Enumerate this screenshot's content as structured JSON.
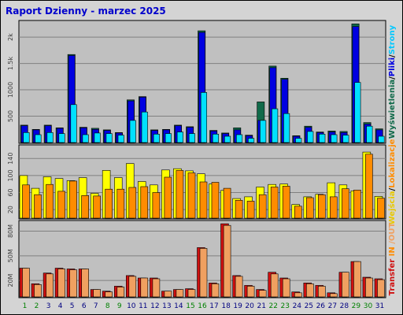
{
  "title": "Raport Dzienny -  marzec 2025",
  "colors": {
    "background": "#ffffff",
    "frame_bg": "#d4d4d4",
    "plot_bg": "#c0c0c0",
    "title": "#0000cc",
    "wyswietlenia": "#106a4a",
    "pliki": "#0000e0",
    "strony": "#00e0ff",
    "wejscia": "#ffff00",
    "lokalizacje": "#ff8c00",
    "in": "#ff8c00",
    "out": "#f0a060",
    "transfer": "#d01010",
    "day_weekday": "#000080",
    "day_weekend": "#008000"
  },
  "legend": {
    "top": [
      {
        "text": "Wyświetlenia",
        "color": "#106a4a"
      },
      {
        "text": "/",
        "color": "#000000"
      },
      {
        "text": "Pliki",
        "color": "#0000e0"
      },
      {
        "text": "/",
        "color": "#000000"
      },
      {
        "text": "Strony",
        "color": "#00c8ff"
      }
    ],
    "mid": [
      {
        "text": "Wejścia",
        "color": "#e8c800"
      },
      {
        "text": "/",
        "color": "#000000"
      },
      {
        "text": "Lokalizacje",
        "color": "#ff8c00"
      }
    ],
    "bottom": [
      {
        "text": "Transfer",
        "color": "#d01010"
      },
      {
        "text": " IN ",
        "color": "#ff8c00"
      },
      {
        "text": "/OUT",
        "color": "#f0a060"
      }
    ]
  },
  "chart_data": [
    {
      "type": "bar",
      "panel": "hits-files-pages",
      "categories": [
        "1",
        "2",
        "3",
        "4",
        "5",
        "6",
        "7",
        "8",
        "9",
        "10",
        "11",
        "12",
        "13",
        "14",
        "15",
        "16",
        "17",
        "18",
        "19",
        "20",
        "21",
        "22",
        "23",
        "24",
        "25",
        "26",
        "27",
        "28",
        "29",
        "30",
        "31"
      ],
      "yticks": [
        "500",
        "1000",
        "1.5k",
        "2k"
      ],
      "ylim": [
        0,
        2300
      ],
      "series": [
        {
          "name": "Wyświetlenia",
          "values": [
            330,
            250,
            330,
            280,
            1670,
            290,
            270,
            240,
            190,
            810,
            870,
            240,
            250,
            330,
            300,
            2120,
            230,
            180,
            280,
            140,
            770,
            1450,
            1220,
            130,
            310,
            200,
            220,
            210,
            2250,
            380,
            260
          ]
        },
        {
          "name": "Pliki",
          "values": [
            320,
            240,
            320,
            270,
            1650,
            280,
            250,
            230,
            180,
            790,
            860,
            230,
            240,
            320,
            290,
            2090,
            220,
            170,
            240,
            130,
            420,
            1420,
            1200,
            120,
            290,
            190,
            200,
            190,
            2200,
            350,
            240
          ]
        },
        {
          "name": "Strony",
          "values": [
            190,
            150,
            190,
            170,
            720,
            150,
            180,
            170,
            140,
            420,
            580,
            160,
            170,
            200,
            170,
            950,
            160,
            120,
            150,
            80,
            420,
            640,
            550,
            80,
            210,
            160,
            150,
            140,
            1140,
            310,
            120
          ]
        }
      ]
    },
    {
      "type": "bar",
      "panel": "visits-sites",
      "categories": [
        "1",
        "2",
        "3",
        "4",
        "5",
        "6",
        "7",
        "8",
        "9",
        "10",
        "11",
        "12",
        "13",
        "14",
        "15",
        "16",
        "17",
        "18",
        "19",
        "20",
        "21",
        "22",
        "23",
        "24",
        "25",
        "26",
        "27",
        "28",
        "29",
        "30",
        "31"
      ],
      "yticks": [
        "20",
        "60",
        "100",
        "140"
      ],
      "ylim": [
        0,
        170
      ],
      "series": [
        {
          "name": "Wejścia",
          "values": [
            100,
            70,
            97,
            93,
            88,
            95,
            58,
            112,
            95,
            128,
            86,
            78,
            113,
            116,
            111,
            104,
            80,
            65,
            46,
            50,
            73,
            79,
            80,
            32,
            50,
            56,
            83,
            78,
            64,
            155,
            51
          ]
        },
        {
          "name": "Lokalizacje",
          "values": [
            78,
            55,
            79,
            63,
            87,
            53,
            52,
            68,
            68,
            72,
            74,
            60,
            96,
            112,
            106,
            85,
            84,
            70,
            42,
            40,
            55,
            73,
            75,
            28,
            48,
            55,
            50,
            69,
            66,
            150,
            47
          ]
        }
      ]
    },
    {
      "type": "bar",
      "panel": "transfer",
      "categories": [
        "1",
        "2",
        "3",
        "4",
        "5",
        "6",
        "7",
        "8",
        "9",
        "10",
        "11",
        "12",
        "13",
        "14",
        "15",
        "16",
        "17",
        "18",
        "19",
        "20",
        "21",
        "22",
        "23",
        "24",
        "25",
        "26",
        "27",
        "28",
        "29",
        "30",
        "31"
      ],
      "yticks": [
        "20M",
        "50M",
        "80M"
      ],
      "ylim": [
        0,
        92
      ],
      "series": [
        {
          "name": "IN",
          "values": [
            35,
            16,
            29,
            35,
            34,
            34,
            9,
            7,
            13,
            26,
            23,
            23,
            7,
            9,
            10,
            60,
            17,
            89,
            26,
            14,
            9,
            30,
            23,
            6,
            17,
            14,
            5,
            30,
            43,
            24,
            22
          ]
        },
        {
          "name": "OUT",
          "values": [
            35,
            15,
            28,
            34,
            33,
            34,
            9,
            6,
            12,
            25,
            23,
            22,
            7,
            9,
            9,
            59,
            16,
            87,
            25,
            13,
            8,
            28,
            22,
            5,
            16,
            13,
            4,
            30,
            43,
            23,
            21
          ]
        }
      ]
    }
  ]
}
